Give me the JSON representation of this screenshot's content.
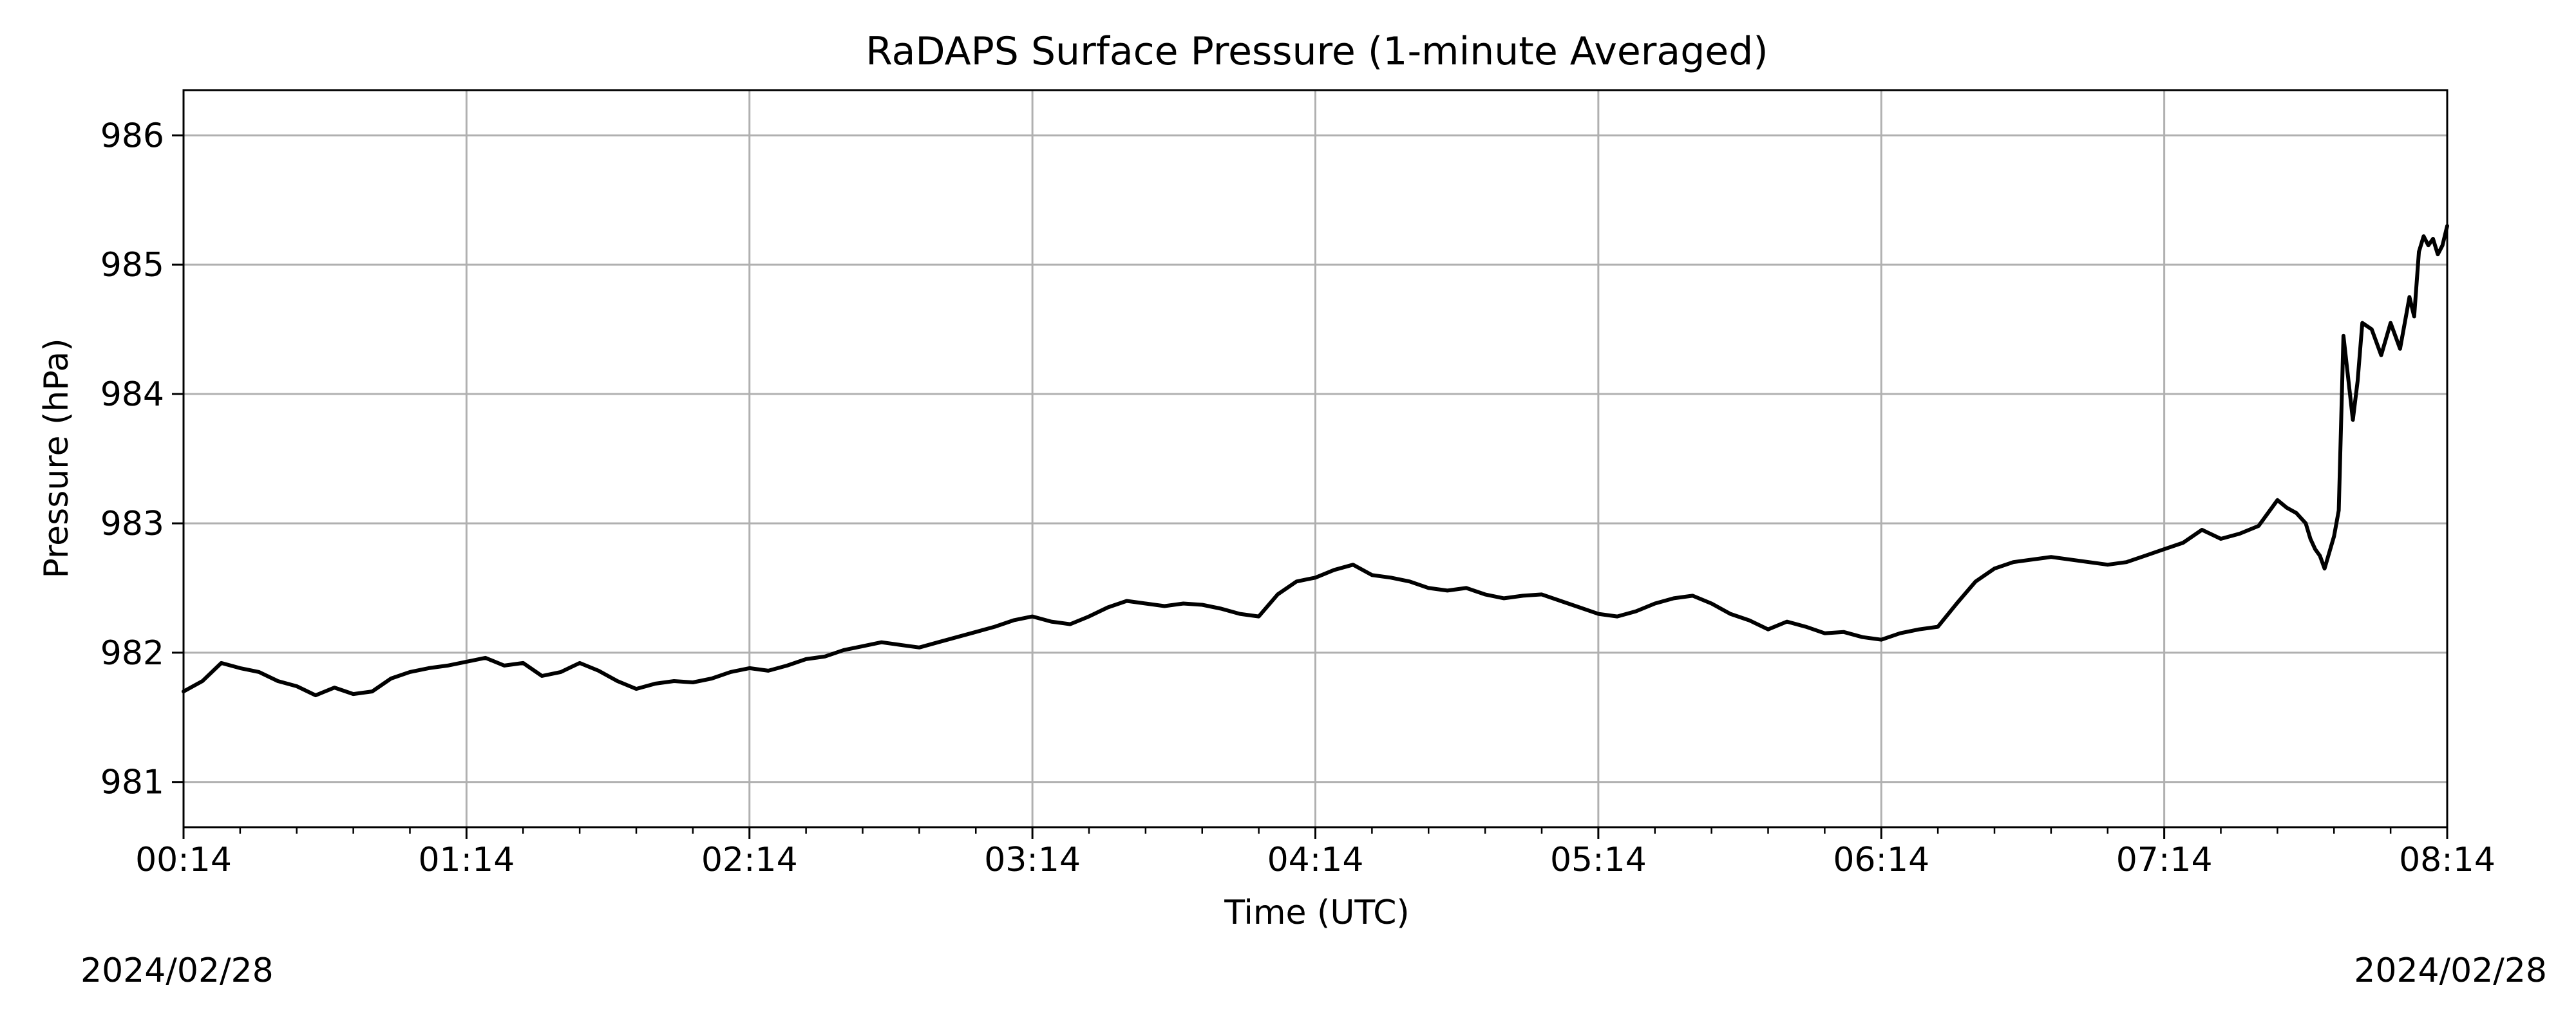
{
  "chart_data": {
    "type": "line",
    "title": "RaDAPS Surface Pressure (1-minute Averaged)",
    "xlabel": "Time (UTC)",
    "ylabel": "Pressure (hPa)",
    "xlim": [
      "00:14",
      "08:14"
    ],
    "ylim": [
      980.65,
      986.35
    ],
    "x_ticks": [
      "00:14",
      "01:14",
      "02:14",
      "03:14",
      "04:14",
      "05:14",
      "06:14",
      "07:14",
      "08:14"
    ],
    "y_ticks": [
      981,
      982,
      983,
      984,
      985,
      986
    ],
    "grid": true,
    "date_left": "2024/02/28",
    "date_right": "2024/02/28",
    "series": [
      {
        "color": "#000000",
        "x": [
          "00:14",
          "00:18",
          "00:22",
          "00:26",
          "00:30",
          "00:34",
          "00:38",
          "00:42",
          "00:46",
          "00:50",
          "00:54",
          "00:58",
          "01:02",
          "01:06",
          "01:10",
          "01:14",
          "01:18",
          "01:22",
          "01:26",
          "01:30",
          "01:34",
          "01:38",
          "01:42",
          "01:46",
          "01:50",
          "01:54",
          "01:58",
          "02:02",
          "02:06",
          "02:10",
          "02:14",
          "02:18",
          "02:22",
          "02:26",
          "02:30",
          "02:34",
          "02:38",
          "02:42",
          "02:46",
          "02:50",
          "02:54",
          "02:58",
          "03:02",
          "03:06",
          "03:10",
          "03:14",
          "03:18",
          "03:22",
          "03:26",
          "03:30",
          "03:34",
          "03:38",
          "03:42",
          "03:46",
          "03:50",
          "03:54",
          "03:58",
          "04:02",
          "04:06",
          "04:10",
          "04:14",
          "04:18",
          "04:22",
          "04:26",
          "04:30",
          "04:34",
          "04:38",
          "04:42",
          "04:46",
          "04:50",
          "04:54",
          "04:58",
          "05:02",
          "05:06",
          "05:10",
          "05:14",
          "05:18",
          "05:22",
          "05:26",
          "05:30",
          "05:34",
          "05:38",
          "05:42",
          "05:46",
          "05:50",
          "05:54",
          "05:58",
          "06:02",
          "06:06",
          "06:10",
          "06:14",
          "06:18",
          "06:22",
          "06:26",
          "06:30",
          "06:34",
          "06:38",
          "06:42",
          "06:46",
          "06:50",
          "06:54",
          "06:58",
          "07:02",
          "07:06",
          "07:10",
          "07:14",
          "07:18",
          "07:22",
          "07:26",
          "07:30",
          "07:34",
          "07:38",
          "07:40",
          "07:42",
          "07:44",
          "07:45",
          "07:46",
          "07:47",
          "07:48",
          "07:50",
          "07:51",
          "07:52",
          "07:54",
          "07:55",
          "07:56",
          "07:58",
          "08:00",
          "08:02",
          "08:04",
          "08:06",
          "08:07",
          "08:08",
          "08:09",
          "08:10",
          "08:11",
          "08:12",
          "08:13",
          "08:14"
        ],
        "y": [
          981.7,
          981.78,
          981.92,
          981.88,
          981.85,
          981.78,
          981.74,
          981.67,
          981.73,
          981.68,
          981.7,
          981.8,
          981.85,
          981.88,
          981.9,
          981.93,
          981.96,
          981.9,
          981.92,
          981.82,
          981.85,
          981.92,
          981.86,
          981.78,
          981.72,
          981.76,
          981.78,
          981.77,
          981.8,
          981.85,
          981.88,
          981.86,
          981.9,
          981.95,
          981.97,
          982.02,
          982.05,
          982.08,
          982.06,
          982.04,
          982.08,
          982.12,
          982.16,
          982.2,
          982.25,
          982.28,
          982.24,
          982.22,
          982.28,
          982.35,
          982.4,
          982.38,
          982.36,
          982.38,
          982.37,
          982.34,
          982.3,
          982.28,
          982.45,
          982.55,
          982.58,
          982.64,
          982.68,
          982.6,
          982.58,
          982.55,
          982.5,
          982.48,
          982.5,
          982.45,
          982.42,
          982.44,
          982.45,
          982.4,
          982.35,
          982.3,
          982.28,
          982.32,
          982.38,
          982.42,
          982.44,
          982.38,
          982.3,
          982.25,
          982.18,
          982.24,
          982.2,
          982.15,
          982.16,
          982.12,
          982.1,
          982.15,
          982.18,
          982.2,
          982.38,
          982.55,
          982.65,
          982.7,
          982.72,
          982.74,
          982.72,
          982.7,
          982.68,
          982.7,
          982.75,
          982.8,
          982.85,
          982.95,
          982.88,
          982.92,
          982.98,
          983.18,
          983.12,
          983.08,
          983.0,
          982.88,
          982.8,
          982.75,
          982.65,
          982.9,
          983.1,
          984.45,
          983.8,
          984.1,
          984.55,
          984.5,
          984.3,
          984.55,
          984.35,
          984.75,
          984.6,
          985.1,
          985.22,
          985.15,
          985.2,
          985.08,
          985.15,
          985.3
        ]
      }
    ]
  }
}
